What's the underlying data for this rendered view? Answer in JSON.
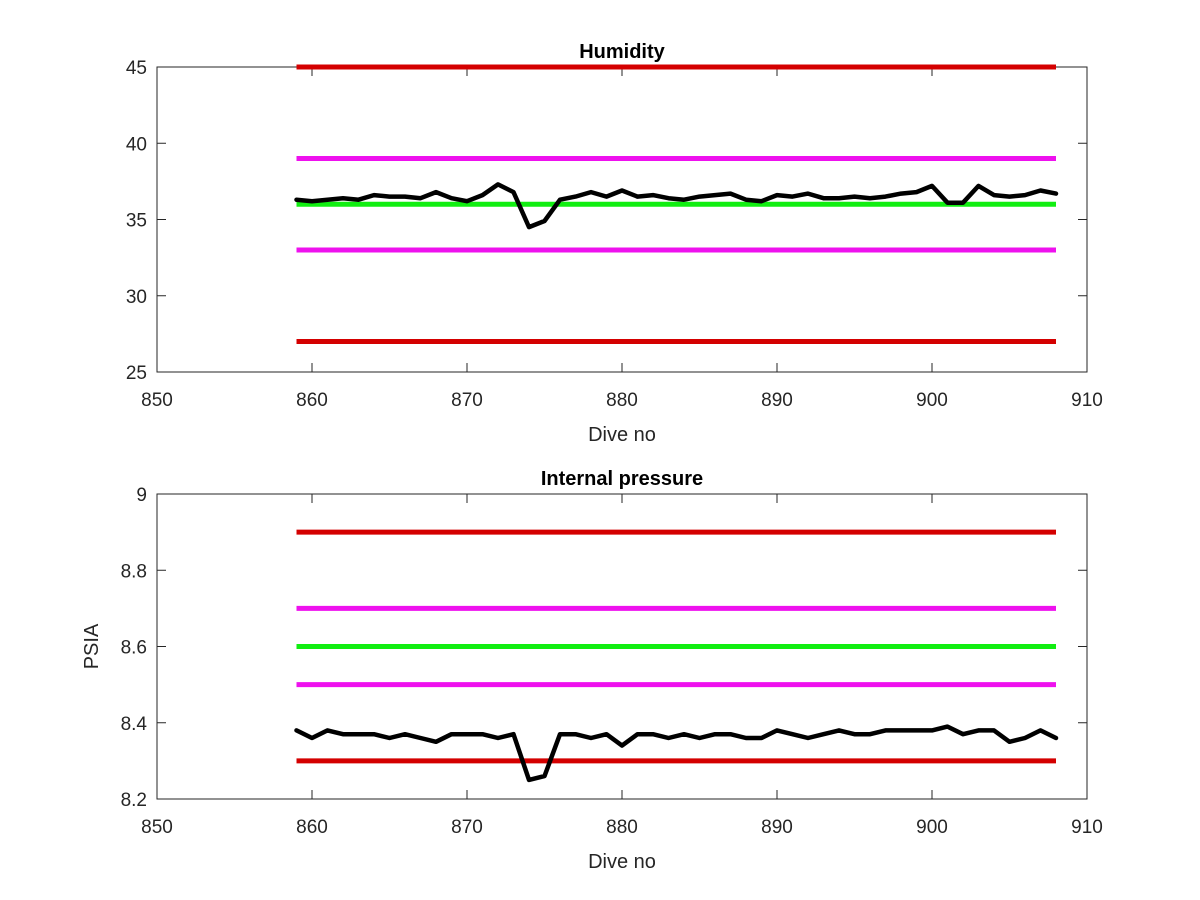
{
  "chart_data": [
    {
      "type": "line",
      "title": "Humidity",
      "xlabel": "Dive no",
      "ylabel": "",
      "xlim": [
        850,
        910
      ],
      "ylim": [
        25,
        45
      ],
      "xticks": [
        850,
        860,
        870,
        880,
        890,
        900,
        910
      ],
      "yticks": [
        25,
        30,
        35,
        40,
        45
      ],
      "grid": false,
      "thresholds": [
        {
          "y": 45,
          "x_range": [
            859,
            908
          ],
          "color": "#d40000"
        },
        {
          "y": 39,
          "x_range": [
            859,
            908
          ],
          "color": "#ee11ee"
        },
        {
          "y": 36,
          "x_range": [
            859,
            908
          ],
          "color": "#11ee11"
        },
        {
          "y": 33,
          "x_range": [
            859,
            908
          ],
          "color": "#ee11ee"
        },
        {
          "y": 27,
          "x_range": [
            859,
            908
          ],
          "color": "#d40000"
        }
      ],
      "series": [
        {
          "color": "#000000",
          "x": [
            859,
            860,
            861,
            862,
            863,
            864,
            865,
            866,
            867,
            868,
            869,
            870,
            871,
            872,
            873,
            874,
            875,
            876,
            877,
            878,
            879,
            880,
            881,
            882,
            883,
            884,
            885,
            886,
            887,
            888,
            889,
            890,
            891,
            892,
            893,
            894,
            895,
            896,
            897,
            898,
            899,
            900,
            901,
            902,
            903,
            904,
            905,
            906,
            907,
            908
          ],
          "y": [
            36.3,
            36.2,
            36.3,
            36.4,
            36.3,
            36.6,
            36.5,
            36.5,
            36.4,
            36.8,
            36.4,
            36.2,
            36.6,
            37.3,
            36.8,
            34.5,
            34.9,
            36.3,
            36.5,
            36.8,
            36.5,
            36.9,
            36.5,
            36.6,
            36.4,
            36.3,
            36.5,
            36.6,
            36.7,
            36.3,
            36.2,
            36.6,
            36.5,
            36.7,
            36.4,
            36.4,
            36.5,
            36.4,
            36.5,
            36.7,
            36.8,
            37.2,
            36.1,
            36.1,
            37.2,
            36.6,
            36.5,
            36.6,
            36.9,
            36.7
          ]
        }
      ]
    },
    {
      "type": "line",
      "title": "Internal pressure",
      "xlabel": "Dive no",
      "ylabel": "PSIA",
      "xlim": [
        850,
        910
      ],
      "ylim": [
        8.2,
        9
      ],
      "xticks": [
        850,
        860,
        870,
        880,
        890,
        900,
        910
      ],
      "yticks": [
        8.2,
        8.4,
        8.6,
        8.8,
        9
      ],
      "grid": false,
      "thresholds": [
        {
          "y": 8.9,
          "x_range": [
            859,
            908
          ],
          "color": "#d40000"
        },
        {
          "y": 8.7,
          "x_range": [
            859,
            908
          ],
          "color": "#ee11ee"
        },
        {
          "y": 8.6,
          "x_range": [
            859,
            908
          ],
          "color": "#11ee11"
        },
        {
          "y": 8.5,
          "x_range": [
            859,
            908
          ],
          "color": "#ee11ee"
        },
        {
          "y": 8.3,
          "x_range": [
            859,
            908
          ],
          "color": "#d40000"
        }
      ],
      "series": [
        {
          "color": "#000000",
          "x": [
            859,
            860,
            861,
            862,
            863,
            864,
            865,
            866,
            867,
            868,
            869,
            870,
            871,
            872,
            873,
            874,
            875,
            876,
            877,
            878,
            879,
            880,
            881,
            882,
            883,
            884,
            885,
            886,
            887,
            888,
            889,
            890,
            891,
            892,
            893,
            894,
            895,
            896,
            897,
            898,
            899,
            900,
            901,
            902,
            903,
            904,
            905,
            906,
            907,
            908
          ],
          "y": [
            8.38,
            8.36,
            8.38,
            8.37,
            8.37,
            8.37,
            8.36,
            8.37,
            8.36,
            8.35,
            8.37,
            8.37,
            8.37,
            8.36,
            8.37,
            8.25,
            8.26,
            8.37,
            8.37,
            8.36,
            8.37,
            8.34,
            8.37,
            8.37,
            8.36,
            8.37,
            8.36,
            8.37,
            8.37,
            8.36,
            8.36,
            8.38,
            8.37,
            8.36,
            8.37,
            8.38,
            8.37,
            8.37,
            8.38,
            8.38,
            8.38,
            8.38,
            8.39,
            8.37,
            8.38,
            8.38,
            8.35,
            8.36,
            8.38,
            8.36
          ]
        }
      ]
    }
  ]
}
